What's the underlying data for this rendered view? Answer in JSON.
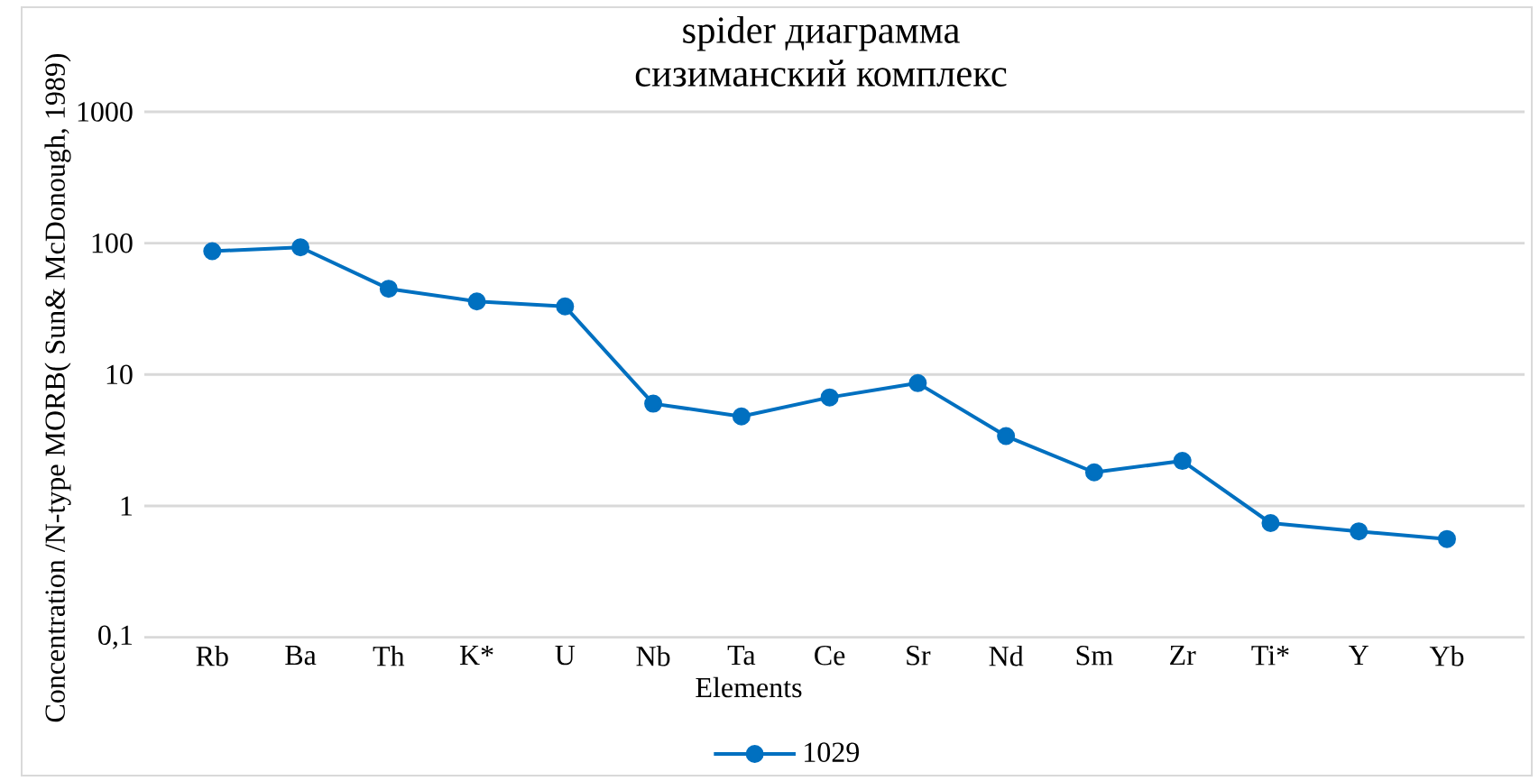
{
  "chart_data": {
    "type": "line",
    "title": "spider диаграмма",
    "subtitle": "сизиманский комплекс",
    "xlabel": "Elements",
    "ylabel": "Concentration /N-type MORB( Sun& McDonough, 1989)",
    "categories": [
      "Rb",
      "Ba",
      "Th",
      "K*",
      "U",
      "Nb",
      "Ta",
      "Ce",
      "Sr",
      "Nd",
      "Sm",
      "Zr",
      "Ti*",
      "Y",
      "Yb"
    ],
    "series": [
      {
        "name": "1029",
        "color": "#0070c0",
        "values": [
          87,
          93,
          45,
          36,
          33,
          6.0,
          4.8,
          6.7,
          8.6,
          3.4,
          1.8,
          2.2,
          0.74,
          0.64,
          0.56
        ]
      }
    ],
    "log": "y",
    "ylim": [
      0.1,
      1000
    ],
    "yticks": [
      {
        "value": 0.1,
        "label": "0,1"
      },
      1,
      10,
      100,
      1000
    ],
    "grid": "y",
    "legend": "bottom",
    "marker": "circle",
    "line_style": "solid"
  }
}
